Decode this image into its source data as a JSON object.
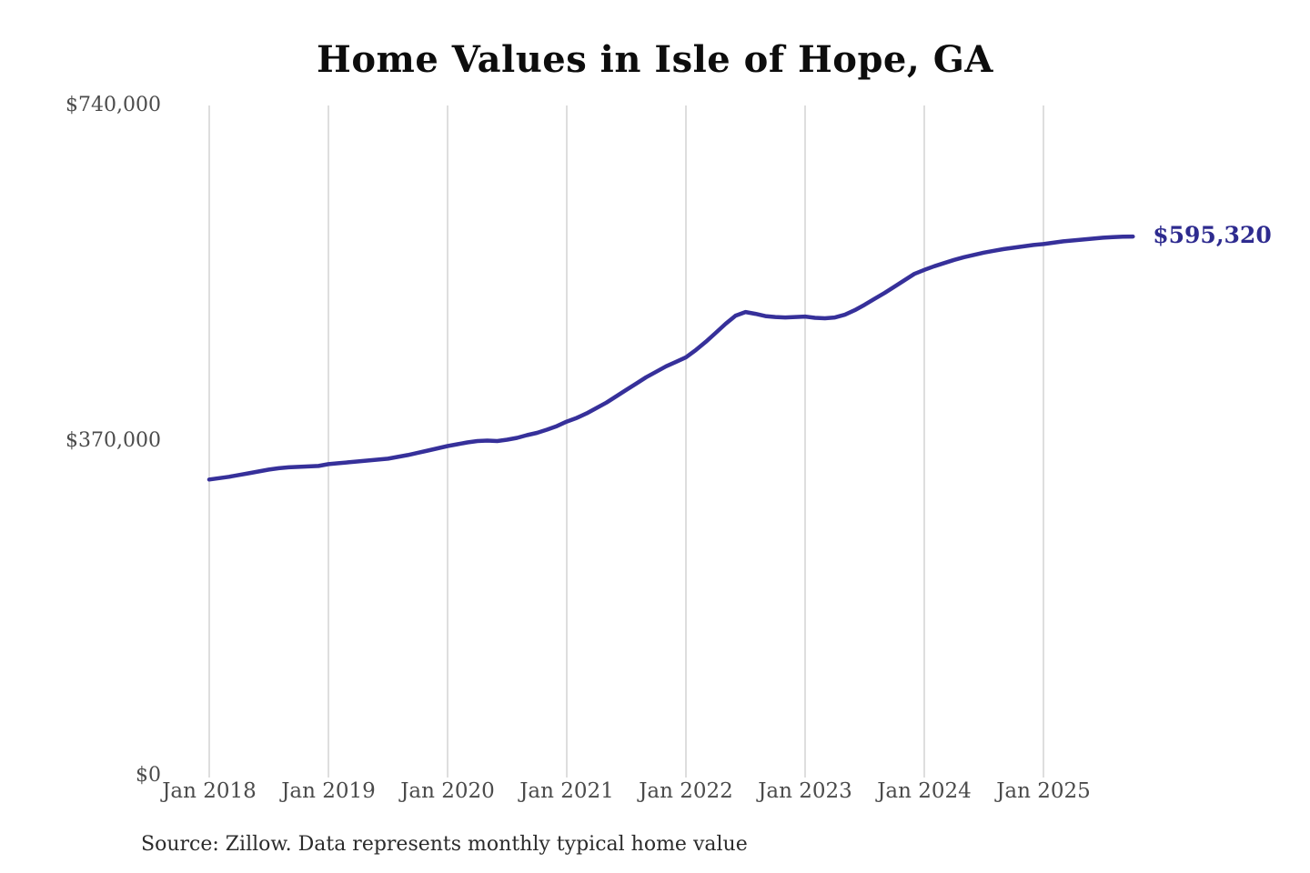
{
  "chart_data": {
    "type": "line",
    "title": "Home Values in Isle of Hope, GA",
    "source_note": "Source: Zillow. Data represents monthly typical home value",
    "end_label": "$595,320",
    "line_color": "#36309a",
    "end_label_color": "#2e2b8f",
    "grid_color": "#cccccc",
    "tick_label_color": "#4b4b4b",
    "ylim": [
      0,
      740000
    ],
    "grid": "vertical-only",
    "legend": "none",
    "y_ticks": [
      {
        "label": "$0",
        "value": 0
      },
      {
        "label": "$370,000",
        "value": 370000
      },
      {
        "label": "$740,000",
        "value": 740000
      }
    ],
    "x_ticks": [
      {
        "label": "Jan 2018",
        "month_index": 0
      },
      {
        "label": "Jan 2019",
        "month_index": 12
      },
      {
        "label": "Jan 2020",
        "month_index": 24
      },
      {
        "label": "Jan 2021",
        "month_index": 36
      },
      {
        "label": "Jan 2022",
        "month_index": 48
      },
      {
        "label": "Jan 2023",
        "month_index": 60
      },
      {
        "label": "Jan 2024",
        "month_index": 72
      },
      {
        "label": "Jan 2025",
        "month_index": 84
      }
    ],
    "series": [
      {
        "name": "Monthly typical home value",
        "dates": [
          "2018-01",
          "2018-02",
          "2018-03",
          "2018-04",
          "2018-05",
          "2018-06",
          "2018-07",
          "2018-08",
          "2018-09",
          "2018-10",
          "2018-11",
          "2018-12",
          "2019-01",
          "2019-02",
          "2019-03",
          "2019-04",
          "2019-05",
          "2019-06",
          "2019-07",
          "2019-08",
          "2019-09",
          "2019-10",
          "2019-11",
          "2019-12",
          "2020-01",
          "2020-02",
          "2020-03",
          "2020-04",
          "2020-05",
          "2020-06",
          "2020-07",
          "2020-08",
          "2020-09",
          "2020-10",
          "2020-11",
          "2020-12",
          "2021-01",
          "2021-02",
          "2021-03",
          "2021-04",
          "2021-05",
          "2021-06",
          "2021-07",
          "2021-08",
          "2021-09",
          "2021-10",
          "2021-11",
          "2021-12",
          "2022-01",
          "2022-02",
          "2022-03",
          "2022-04",
          "2022-05",
          "2022-06",
          "2022-07",
          "2022-08",
          "2022-09",
          "2022-10",
          "2022-11",
          "2022-12",
          "2023-01",
          "2023-02",
          "2023-03",
          "2023-04",
          "2023-05",
          "2023-06",
          "2023-07",
          "2023-08",
          "2023-09",
          "2023-10",
          "2023-11",
          "2023-12",
          "2024-01",
          "2024-02",
          "2024-03",
          "2024-04",
          "2024-05",
          "2024-06",
          "2024-07",
          "2024-08",
          "2024-09",
          "2024-10",
          "2024-11",
          "2024-12",
          "2025-01",
          "2025-02",
          "2025-03",
          "2025-04",
          "2025-05",
          "2025-06",
          "2025-07",
          "2025-08",
          "2025-09",
          "2025-10"
        ],
        "values": [
          327000,
          328500,
          330000,
          332000,
          334000,
          336000,
          338000,
          339500,
          340500,
          341000,
          341500,
          342000,
          344000,
          345000,
          346000,
          347000,
          348000,
          349000,
          350000,
          352000,
          354000,
          356500,
          359000,
          361500,
          364000,
          366000,
          368000,
          369500,
          370000,
          369500,
          371000,
          373000,
          376000,
          378500,
          382000,
          386000,
          391000,
          395000,
          400000,
          406000,
          412000,
          419000,
          426000,
          433000,
          440000,
          446000,
          452000,
          457000,
          462000,
          470000,
          479000,
          489000,
          499000,
          508000,
          512000,
          510000,
          507500,
          506500,
          506000,
          506500,
          507000,
          505500,
          505000,
          506000,
          509000,
          514000,
          520000,
          526500,
          533000,
          540000,
          547000,
          554000,
          558500,
          562500,
          566000,
          569500,
          572500,
          575000,
          577500,
          579500,
          581500,
          583000,
          584500,
          586000,
          587000,
          588500,
          590000,
          591000,
          592000,
          593000,
          594000,
          594700,
          595100,
          595320
        ]
      }
    ]
  }
}
